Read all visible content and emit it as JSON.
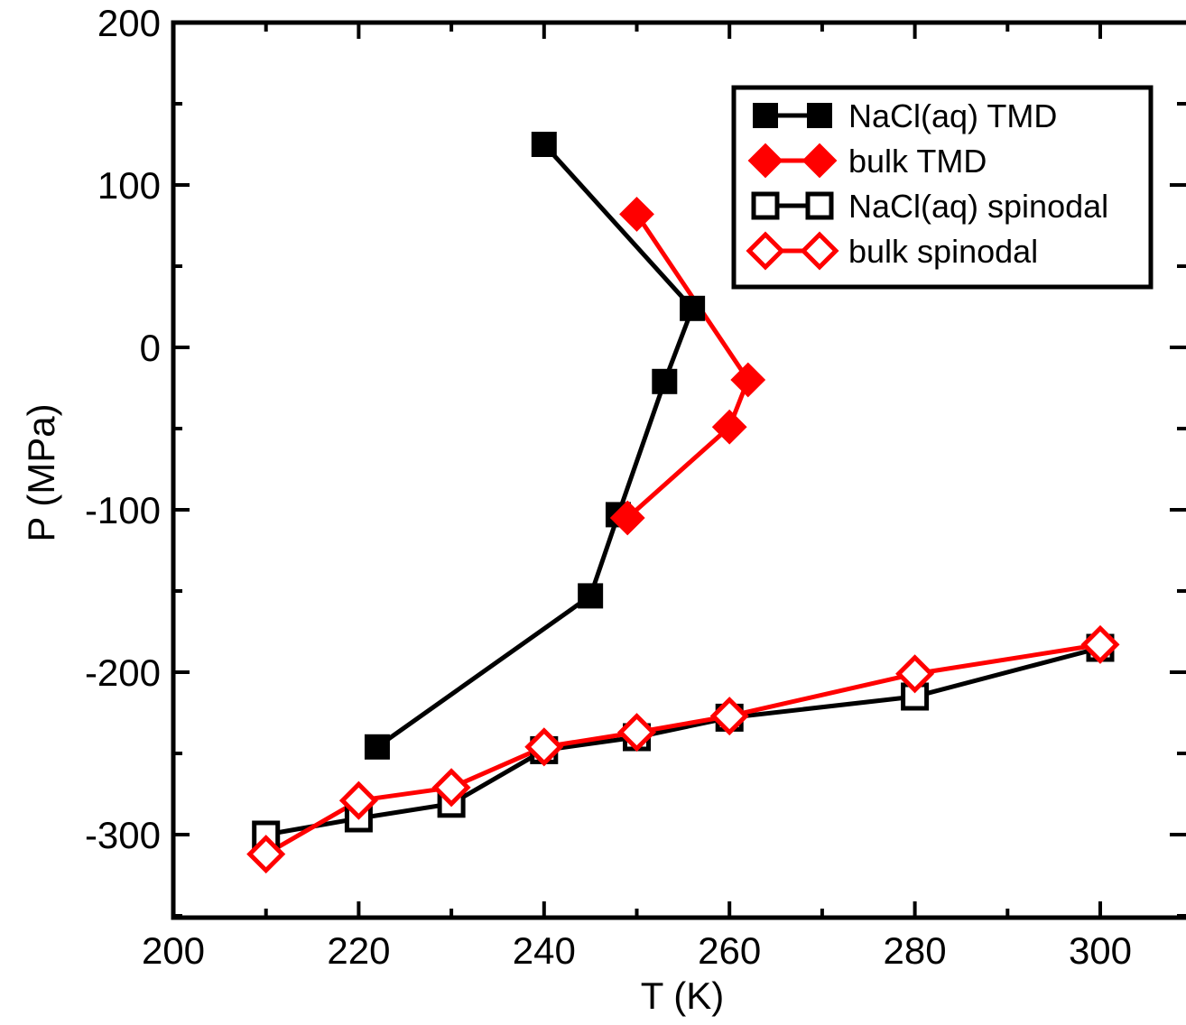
{
  "chart_data": {
    "type": "line",
    "xlabel": "T (K)",
    "ylabel": "P (MPa)",
    "xlim": [
      200,
      310
    ],
    "ylim": [
      -350,
      200
    ],
    "x_ticks": [
      200,
      220,
      240,
      260,
      280,
      300
    ],
    "y_ticks": [
      200,
      100,
      0,
      -100,
      -200,
      -300
    ],
    "x_tick_labels": [
      "200",
      "220",
      "240",
      "260",
      "280",
      "300"
    ],
    "y_tick_labels": [
      "200",
      "100",
      "0",
      "-100",
      "-200",
      "-300"
    ],
    "grid": false,
    "legend_position": "top-right",
    "series": [
      {
        "name": "NaCl(aq) TMD",
        "color": "#000000",
        "marker": "square",
        "filled": true,
        "points": [
          [
            240,
            125
          ],
          [
            256,
            24
          ],
          [
            253,
            -21
          ],
          [
            248,
            -103
          ],
          [
            245,
            -153
          ],
          [
            222,
            -246
          ]
        ]
      },
      {
        "name": "bulk TMD",
        "color": "#ff0000",
        "marker": "diamond",
        "filled": true,
        "points": [
          [
            250,
            82
          ],
          [
            262,
            -20
          ],
          [
            260,
            -49
          ],
          [
            249,
            -105
          ]
        ]
      },
      {
        "name": "NaCl(aq) spinodal",
        "color": "#000000",
        "marker": "square",
        "filled": false,
        "points": [
          [
            210,
            -300
          ],
          [
            220,
            -290
          ],
          [
            230,
            -281
          ],
          [
            240,
            -248
          ],
          [
            250,
            -240
          ],
          [
            260,
            -228
          ],
          [
            280,
            -215
          ],
          [
            300,
            -185
          ]
        ]
      },
      {
        "name": "bulk spinodal",
        "color": "#ff0000",
        "marker": "diamond",
        "filled": false,
        "points": [
          [
            210,
            -312
          ],
          [
            220,
            -279
          ],
          [
            230,
            -271
          ],
          [
            240,
            -246
          ],
          [
            250,
            -237
          ],
          [
            260,
            -227
          ],
          [
            280,
            -201
          ],
          [
            300,
            -183
          ]
        ]
      }
    ]
  }
}
